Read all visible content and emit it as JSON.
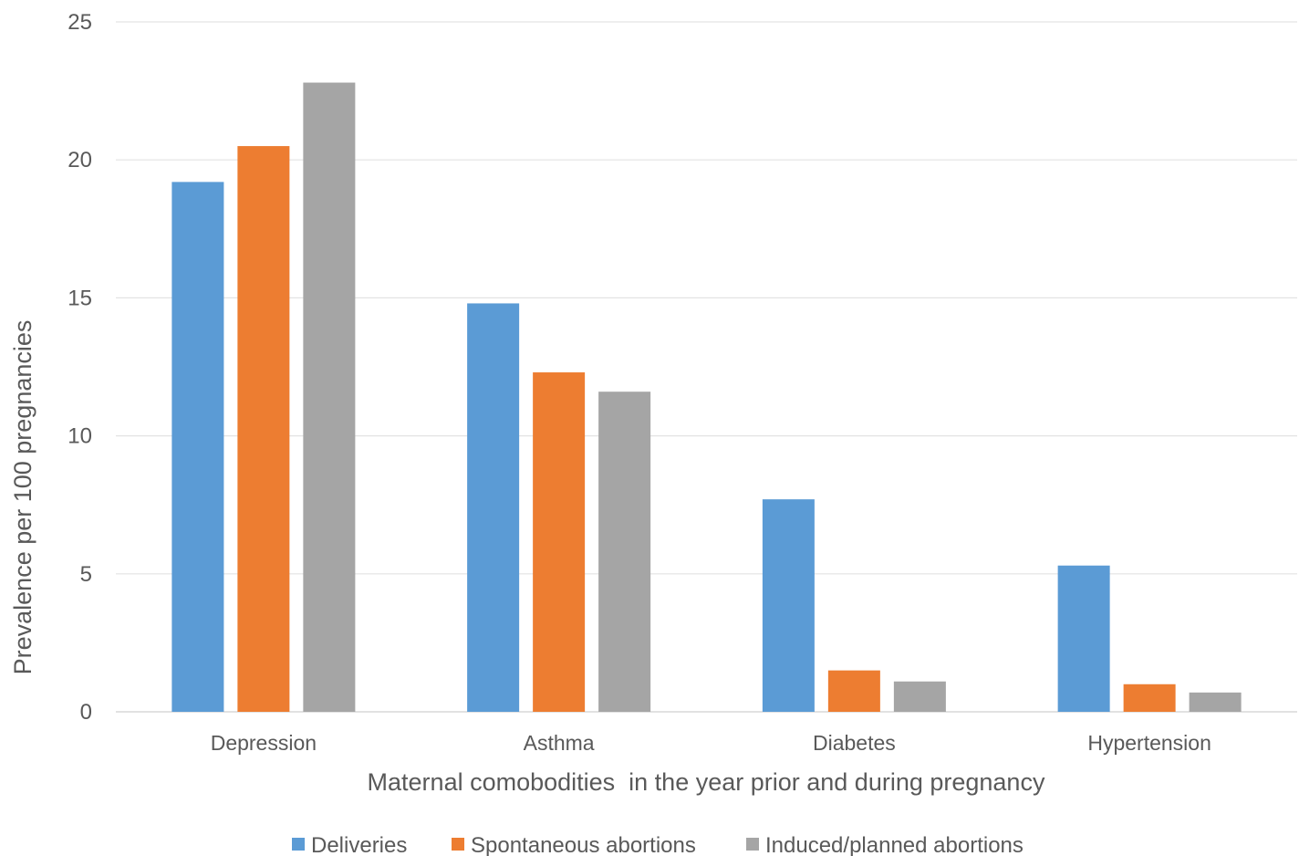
{
  "chart_data": {
    "type": "bar",
    "title": "",
    "xlabel": "Maternal comobodities  in the year prior and during pregnancy",
    "ylabel": "Prevalence per 100 pregnancies",
    "ylim": [
      0,
      25
    ],
    "yticks": [
      0,
      5,
      10,
      15,
      20,
      25
    ],
    "grid": true,
    "legend_position": "bottom",
    "categories": [
      "Depression",
      "Asthma",
      "Diabetes",
      "Hypertension"
    ],
    "series": [
      {
        "name": "Deliveries",
        "color": "#5B9BD5",
        "values": [
          19.2,
          14.8,
          7.7,
          5.3
        ]
      },
      {
        "name": "Spontaneous abortions",
        "color": "#ED7D31",
        "values": [
          20.5,
          12.3,
          1.5,
          1.0
        ]
      },
      {
        "name": "Induced/planned abortions",
        "color": "#A5A5A5",
        "values": [
          22.8,
          11.6,
          1.1,
          0.7
        ]
      }
    ]
  }
}
